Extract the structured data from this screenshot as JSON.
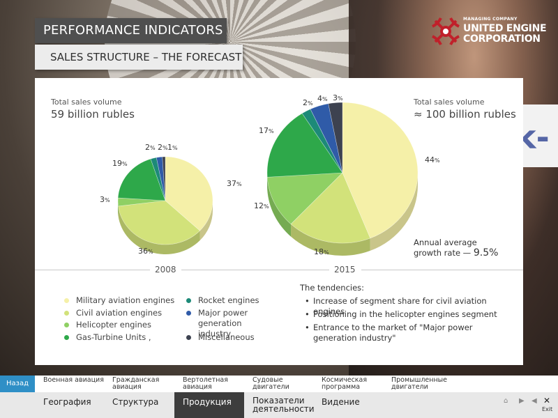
{
  "header": {
    "title": "PERFORMANCE INDICATORS",
    "subtitle": "SALES STRUCTURE – THE FORECAST"
  },
  "logo": {
    "small": "MANAGING COMPANY",
    "line1": "UNITED ENGINE",
    "line2": "CORPORATION"
  },
  "colors": {
    "military": "#f5f0a8",
    "civil": "#d2e27a",
    "helicopter": "#8fd064",
    "gasturbine": "#2ea84a",
    "rocket": "#1d8a78",
    "power": "#2f5ba8",
    "misc": "#3d4250",
    "accent": "#2f8fc6"
  },
  "chart_data": [
    {
      "type": "pie",
      "title": "2008",
      "total_label": "Total sales volume",
      "total_value": "59 billion rubles",
      "slices": [
        {
          "name": "Military aviation engines",
          "value": 37,
          "label": "37"
        },
        {
          "name": "Civil aviation engines",
          "value": 36,
          "label": "36"
        },
        {
          "name": "Helicopter engines",
          "value": 3,
          "label": "3"
        },
        {
          "name": "Gas-Turbine Units ,",
          "value": 19,
          "label": "19"
        },
        {
          "name": "Rocket engines",
          "value": 2,
          "label": "2"
        },
        {
          "name": "Major power generation industry",
          "value": 2,
          "label": "2"
        },
        {
          "name": "Miscellaneous",
          "value": 1,
          "label": "1"
        }
      ]
    },
    {
      "type": "pie",
      "title": "2015",
      "total_label": "Total sales volume",
      "total_value": "≈ 100 billion rubles",
      "growth_label": "Annual average growth rate —",
      "growth_value": "9.5%",
      "slices": [
        {
          "name": "Military aviation engines",
          "value": 44,
          "label": "44"
        },
        {
          "name": "Civil aviation engines",
          "value": 18,
          "label": "18"
        },
        {
          "name": "Helicopter engines",
          "value": 12,
          "label": "12"
        },
        {
          "name": "Gas-Turbine Units ,",
          "value": 17,
          "label": "17"
        },
        {
          "name": "Rocket engines",
          "value": 2,
          "label": "2"
        },
        {
          "name": "Major power generation industry",
          "value": 4,
          "label": "4"
        },
        {
          "name": "Miscellaneous",
          "value": 3,
          "label": "3"
        }
      ]
    }
  ],
  "legend": [
    {
      "label": "Military aviation engines",
      "color": "#f5f0a8"
    },
    {
      "label": "Civil aviation engines",
      "color": "#d2e27a"
    },
    {
      "label": "Helicopter engines",
      "color": "#8fd064"
    },
    {
      "label": "Gas-Turbine Units ,",
      "color": "#2ea84a"
    },
    {
      "label": "Rocket engines",
      "color": "#1d8a78"
    },
    {
      "label": "Major power generation industry",
      "color": "#2f5ba8"
    },
    {
      "label": "Miscellaneous",
      "color": "#3d4250"
    }
  ],
  "tendencies": {
    "title": "The tendencies:",
    "items": [
      "Increase of segment share for civil aviation engines",
      "Positioning in the helicopter engines segment",
      "Entrance to the market of \"Major power generation industry\""
    ]
  },
  "nav": {
    "back": "Назад",
    "sub": [
      "Военная авиация",
      "Гражданская авиация",
      "Вертолетная авиация",
      "Судовые двигатели",
      "Космическая программа",
      "Промышленные двигатели"
    ],
    "main": [
      "География",
      "Структура",
      "Продукция",
      "Показатели деятельности",
      "Видение"
    ],
    "active_main": "Продукция",
    "exit": "Exit"
  }
}
